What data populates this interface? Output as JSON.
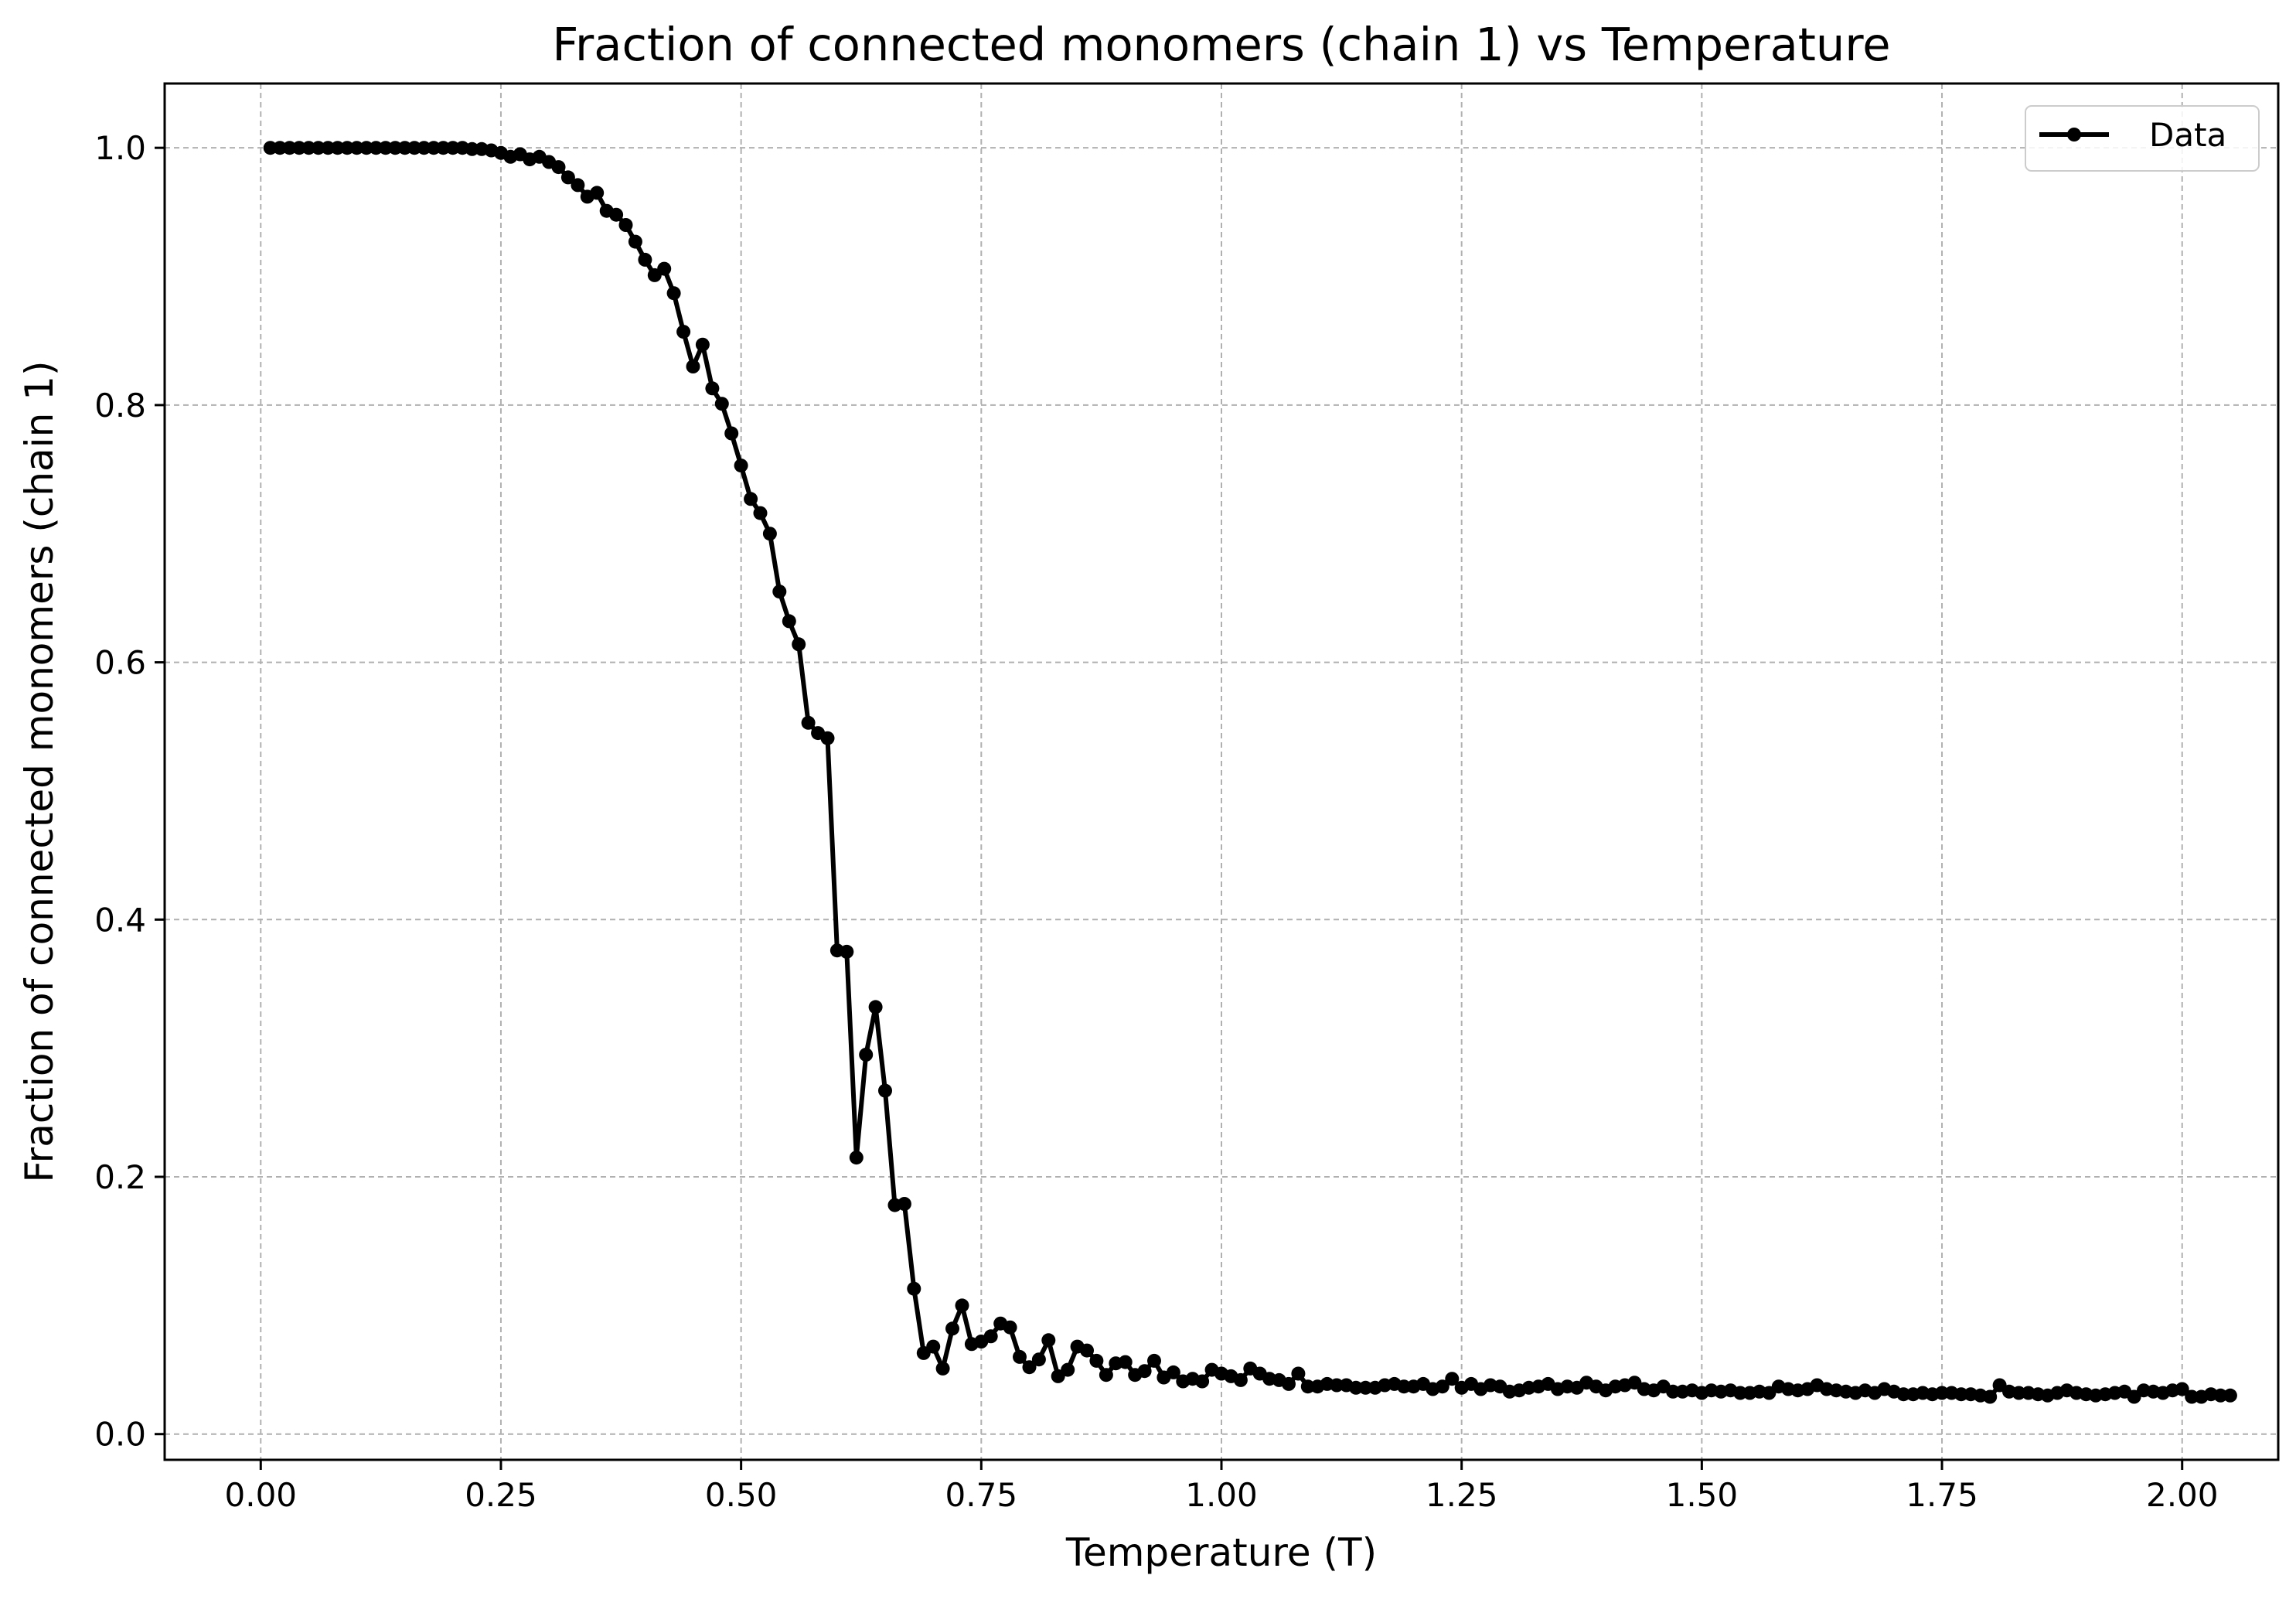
{
  "chart_data": {
    "type": "line",
    "title": "Fraction of connected monomers (chain 1) vs Temperature",
    "xlabel": "Temperature (T)",
    "ylabel": "Fraction of connected monomers (chain 1)",
    "xlim": [
      -0.1,
      2.1
    ],
    "ylim": [
      -0.02,
      1.05
    ],
    "xticks": [
      0.0,
      0.25,
      0.5,
      0.75,
      1.0,
      1.25,
      1.5,
      1.75,
      2.0
    ],
    "xtick_labels": [
      "0.00",
      "0.25",
      "0.50",
      "0.75",
      "1.00",
      "1.25",
      "1.50",
      "1.75",
      "2.00"
    ],
    "yticks": [
      0.0,
      0.2,
      0.4,
      0.6,
      0.8,
      1.0
    ],
    "ytick_labels": [
      "0.0",
      "0.2",
      "0.4",
      "0.6",
      "0.8",
      "1.0"
    ],
    "grid": true,
    "legend_position": "top-right",
    "series": [
      {
        "name": "Data",
        "color": "#000000",
        "marker": "circle",
        "x_start": 0.01,
        "x_step": 0.01,
        "y": [
          1.0,
          1.0,
          1.0,
          1.0,
          1.0,
          1.0,
          1.0,
          1.0,
          1.0,
          1.0,
          1.0,
          1.0,
          1.0,
          1.0,
          1.0,
          1.0,
          1.0,
          1.0,
          1.0,
          1.0,
          1.0,
          0.999,
          0.999,
          0.998,
          0.996,
          0.993,
          0.995,
          0.991,
          0.993,
          0.989,
          0.985,
          0.977,
          0.971,
          0.962,
          0.965,
          0.951,
          0.948,
          0.94,
          0.927,
          0.913,
          0.901,
          0.906,
          0.887,
          0.857,
          0.83,
          0.847,
          0.813,
          0.801,
          0.778,
          0.753,
          0.727,
          0.716,
          0.7,
          0.655,
          0.632,
          0.614,
          0.553,
          0.545,
          0.541,
          0.376,
          0.375,
          0.215,
          0.295,
          0.332,
          0.267,
          0.178,
          0.179,
          0.113,
          0.063,
          0.068,
          0.051,
          0.082,
          0.1,
          0.07,
          0.072,
          0.076,
          0.086,
          0.083,
          0.06,
          0.052,
          0.058,
          0.073,
          0.045,
          0.05,
          0.068,
          0.065,
          0.057,
          0.046,
          0.055,
          0.056,
          0.046,
          0.049,
          0.057,
          0.044,
          0.048,
          0.041,
          0.043,
          0.041,
          0.05,
          0.047,
          0.045,
          0.042,
          0.051,
          0.047,
          0.043,
          0.042,
          0.039,
          0.047,
          0.037,
          0.037,
          0.039,
          0.038,
          0.038,
          0.036,
          0.036,
          0.036,
          0.038,
          0.039,
          0.037,
          0.037,
          0.039,
          0.035,
          0.037,
          0.043,
          0.036,
          0.039,
          0.035,
          0.038,
          0.037,
          0.033,
          0.034,
          0.036,
          0.037,
          0.039,
          0.035,
          0.037,
          0.036,
          0.04,
          0.037,
          0.034,
          0.037,
          0.038,
          0.04,
          0.035,
          0.034,
          0.037,
          0.033,
          0.033,
          0.034,
          0.032,
          0.034,
          0.033,
          0.034,
          0.032,
          0.032,
          0.033,
          0.032,
          0.037,
          0.035,
          0.034,
          0.035,
          0.038,
          0.035,
          0.034,
          0.033,
          0.032,
          0.034,
          0.032,
          0.035,
          0.033,
          0.031,
          0.031,
          0.032,
          0.031,
          0.032,
          0.032,
          0.031,
          0.031,
          0.03,
          0.029,
          0.038,
          0.033,
          0.032,
          0.032,
          0.031,
          0.03,
          0.032,
          0.034,
          0.032,
          0.031,
          0.03,
          0.031,
          0.032,
          0.033,
          0.029,
          0.034,
          0.033,
          0.032,
          0.034,
          0.035,
          0.029,
          0.029,
          0.031,
          0.03,
          0.03
        ]
      }
    ]
  }
}
